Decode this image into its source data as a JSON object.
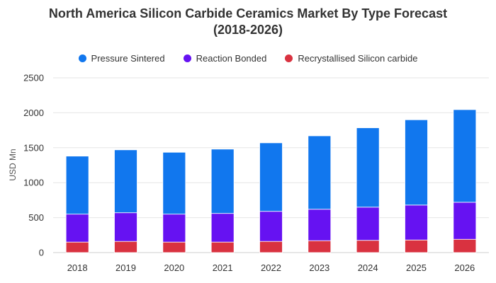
{
  "chart_data": {
    "type": "bar",
    "stacked": true,
    "title_line1": "North America Silicon Carbide Ceramics Market By Type Forecast",
    "title_line2": "(2018-2026)",
    "xlabel": "",
    "ylabel": "USD Mn",
    "ylim": [
      0,
      2500
    ],
    "yticks": [
      0,
      500,
      1000,
      1500,
      2000,
      2500
    ],
    "grid": true,
    "legend_position": "top",
    "categories": [
      "2018",
      "2019",
      "2020",
      "2021",
      "2022",
      "2023",
      "2024",
      "2025",
      "2026"
    ],
    "series": [
      {
        "name": "Recrystallised Silicon carbide",
        "color": "#d93240",
        "values": [
          150,
          160,
          150,
          150,
          160,
          170,
          175,
          180,
          190
        ]
      },
      {
        "name": "Reaction Bonded",
        "color": "#6612f2",
        "values": [
          400,
          410,
          400,
          410,
          430,
          450,
          475,
          500,
          530
        ]
      },
      {
        "name": "Pressure Sintered",
        "color": "#1177ee",
        "values": [
          830,
          900,
          885,
          920,
          980,
          1050,
          1135,
          1220,
          1325
        ]
      }
    ],
    "legend_order": [
      "Pressure Sintered",
      "Reaction Bonded",
      "Recrystallised Silicon carbide"
    ]
  }
}
